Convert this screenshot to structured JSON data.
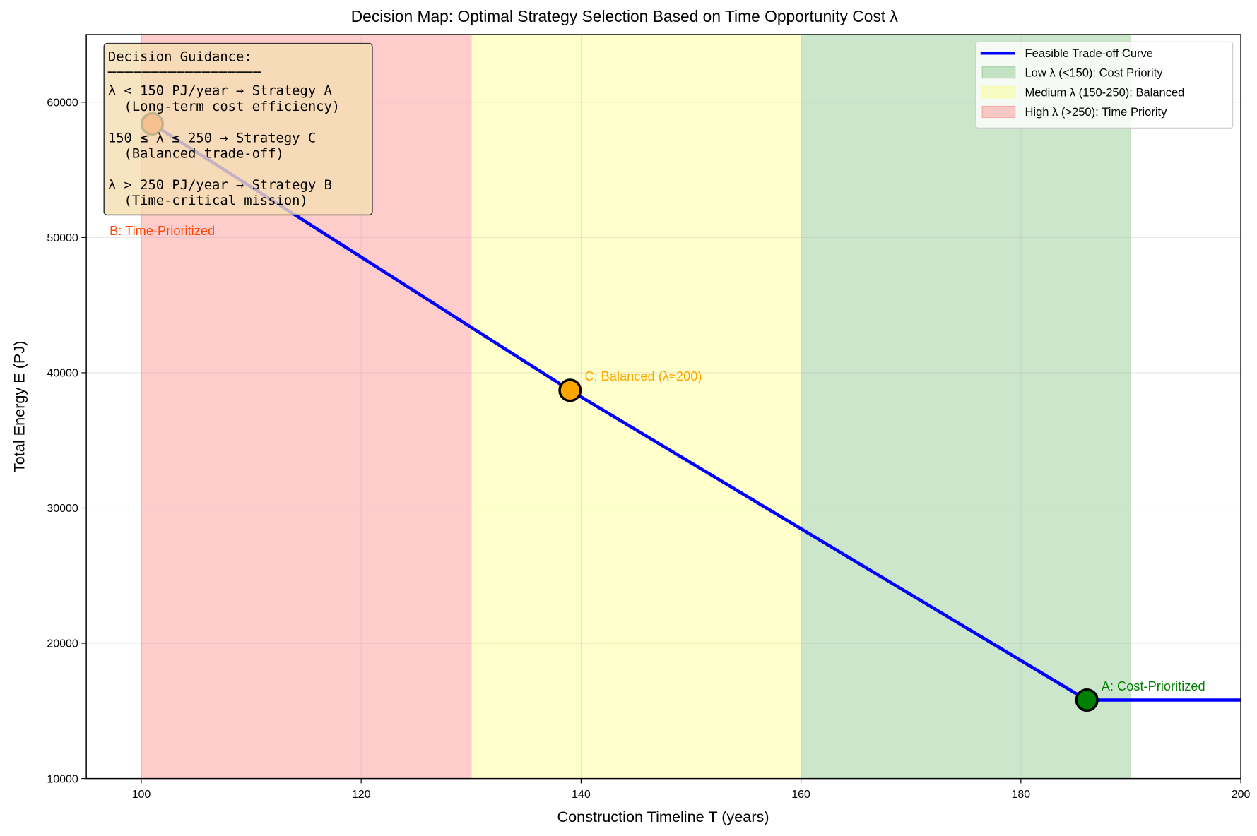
{
  "chart_data": {
    "type": "line",
    "title": "Decision Map: Optimal Strategy Selection Based on Time Opportunity Cost λ",
    "xlabel": "Construction Timeline T (years)",
    "ylabel": "Total Energy E (PJ)",
    "xlim": [
      95,
      200
    ],
    "ylim": [
      10000,
      65000
    ],
    "xticks": [
      100,
      120,
      140,
      160,
      180,
      200
    ],
    "yticks": [
      10000,
      20000,
      30000,
      40000,
      50000,
      60000
    ],
    "grid": true,
    "legend_placement": "top-right",
    "series": [
      {
        "name": "Feasible Trade-off Curve",
        "color": "#0000ff",
        "x": [
          101,
          139,
          186,
          200
        ],
        "y": [
          58400,
          38700,
          15800,
          15800
        ]
      }
    ],
    "bands": [
      {
        "name": "Low λ (<150): Cost Priority",
        "x0": 160,
        "x1": 190,
        "color": "#008000"
      },
      {
        "name": "Medium λ (150-250): Balanced",
        "x0": 130,
        "x1": 160,
        "color": "#ffff00"
      },
      {
        "name": "High λ (>250): Time Priority",
        "x0": 100,
        "x1": 130,
        "color": "#ff0000"
      }
    ],
    "points": [
      {
        "label": "B: Time-Prioritized",
        "x": 101,
        "y": 58400,
        "color": "#ff4500"
      },
      {
        "label": "C: Balanced (λ≈200)",
        "x": 139,
        "y": 38700,
        "color": "#ffa500"
      },
      {
        "label": "A: Cost-Prioritized",
        "x": 186,
        "y": 15800,
        "color": "#008000"
      }
    ],
    "annotation": {
      "title": "Decision Guidance:",
      "rule": "──────────────────",
      "lines": [
        "λ < 150 PJ/year → Strategy A",
        "  (Long-term cost efficiency)",
        "",
        "150 ≤ λ ≤ 250 → Strategy C",
        "  (Balanced trade-off)",
        "",
        "λ > 250 PJ/year → Strategy B",
        "  (Time-critical mission)"
      ]
    }
  }
}
